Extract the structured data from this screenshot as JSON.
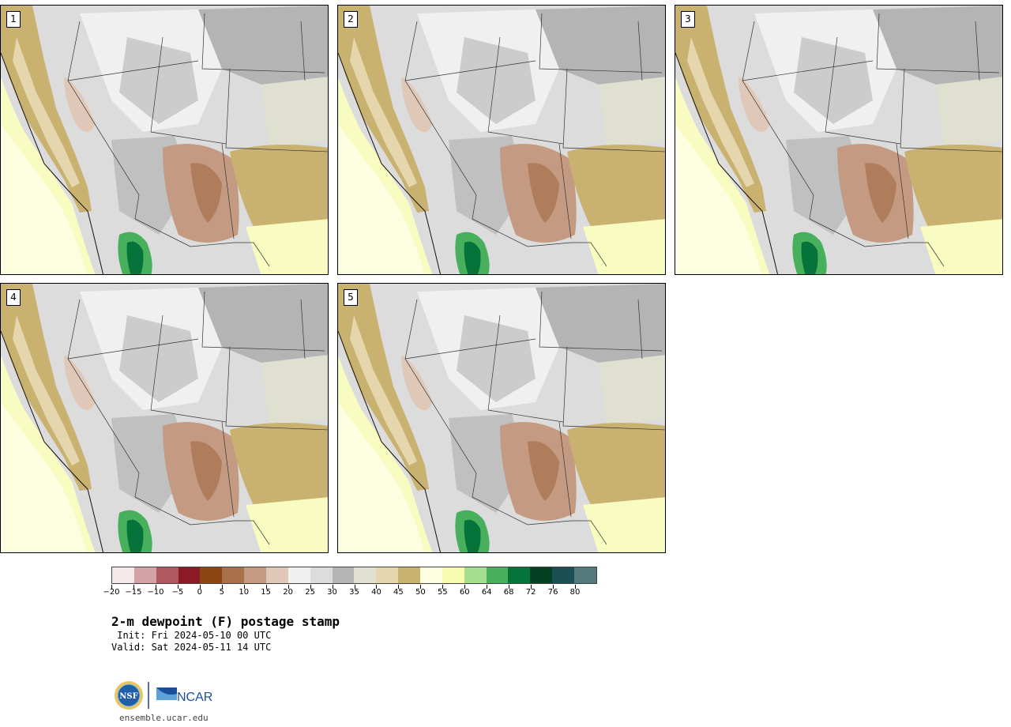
{
  "stamps": [
    {
      "label": "1"
    },
    {
      "label": "2"
    },
    {
      "label": "3"
    },
    {
      "label": "4"
    },
    {
      "label": "5"
    }
  ],
  "colorbar": {
    "colors": [
      "#f4e9ea",
      "#d3a1a6",
      "#b0585f",
      "#8b1a24",
      "#8c4513",
      "#a8714c",
      "#c49a82",
      "#e0c8b8",
      "#f0f0f0",
      "#dcdcdc",
      "#b4b4b4",
      "#e0e0d0",
      "#e6d6ae",
      "#c9b170",
      "#fdfde0",
      "#f8fcb0",
      "#a6df90",
      "#48b05c",
      "#06733a",
      "#033f22",
      "#1a4f53",
      "#54797c"
    ],
    "tick_labels": [
      "−20",
      "−15",
      "−10",
      "−5",
      "0",
      "5",
      "10",
      "15",
      "20",
      "25",
      "30",
      "35",
      "40",
      "45",
      "50",
      "55",
      "60",
      "64",
      "68",
      "72",
      "76",
      "80"
    ]
  },
  "title": "2-m dewpoint (F) postage stamp",
  "init_line": " Init: Fri 2024-05-10 00 UTC",
  "valid_line": "Valid: Sat 2024-05-11 14 UTC",
  "logos": {
    "nsf": "NSF",
    "ncar": "NCAR"
  },
  "website": "ensemble.ucar.edu"
}
